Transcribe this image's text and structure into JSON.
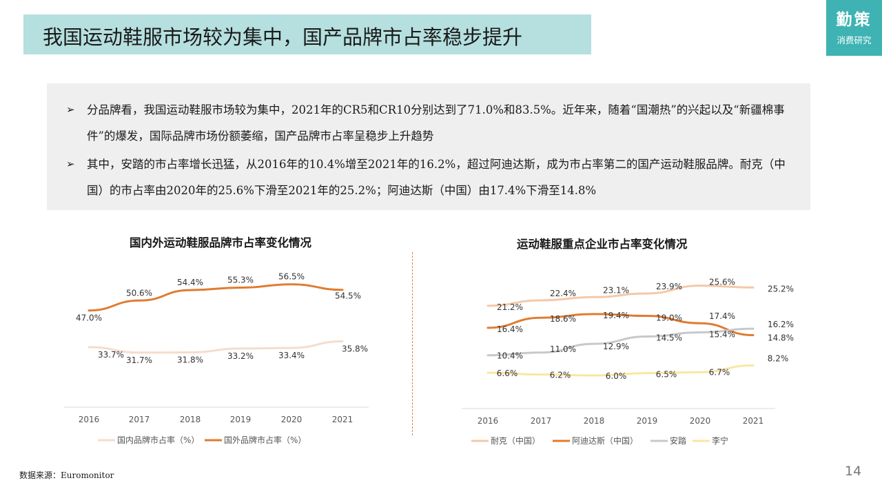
{
  "header": {
    "title": "我国运动鞋服市场较为集中，国产品牌市占率稳步提升"
  },
  "brand": {
    "name": "勤策",
    "subtitle": "消费研究"
  },
  "summary": {
    "bullets": [
      {
        "marker": "➢",
        "text": "分品牌看，我国运动鞋服市场较为集中，2021年的CR5和CR10分别达到了71.0%和83.5%。近年来，随着“国潮热”的兴起以及“新疆棉事件”的爆发，国际品牌市场份额萎缩，国产品牌市占率呈稳步上升趋势"
      },
      {
        "marker": "➢",
        "text": "其中，安踏的市占率增长迅猛，从2016年的10.4%增至2021年的16.2%，超过阿迪达斯，成为市占率第二的国产运动鞋服品牌。耐克（中国）的市占率由2020年的25.6%下滑至2021年的25.2%；阿迪达斯（中国）由17.4%下滑至14.8%"
      }
    ]
  },
  "chart_data": [
    {
      "type": "line",
      "title": "国内外运动鞋服品牌市占率变化情况",
      "xlabel": "",
      "ylabel": "",
      "categories": [
        "2016",
        "2017",
        "2018",
        "2019",
        "2020",
        "2021"
      ],
      "series": [
        {
          "name": "国内品牌市占率（%）",
          "values": [
            33.7,
            31.7,
            31.8,
            33.2,
            33.4,
            35.8
          ],
          "labels": [
            "33.7%",
            "31.7%",
            "31.8%",
            "33.2%",
            "33.4%",
            "35.8%"
          ],
          "color": "#f6dccb"
        },
        {
          "name": "国外品牌市占率（%）",
          "values": [
            47.0,
            50.6,
            54.4,
            55.3,
            56.5,
            54.5
          ],
          "labels": [
            "47.0%",
            "50.6%",
            "54.4%",
            "55.3%",
            "56.5%",
            "54.5%"
          ],
          "color": "#e07b30"
        }
      ],
      "ylim": [
        0,
        80
      ],
      "grid": false,
      "legend": "bottom"
    },
    {
      "type": "line",
      "title": "运动鞋服重点企业市占率变化情况",
      "xlabel": "",
      "ylabel": "",
      "categories": [
        "2016",
        "2017",
        "2018",
        "2019",
        "2020",
        "2021"
      ],
      "series": [
        {
          "name": "耐克（中国）",
          "values": [
            21.2,
            22.4,
            23.1,
            23.9,
            25.6,
            25.2
          ],
          "labels": [
            "21.2%",
            "22.4%",
            "23.1%",
            "23.9%",
            "25.6%",
            "25.2%"
          ],
          "color": "#f4c8a8"
        },
        {
          "name": "阿迪达斯（中国）",
          "values": [
            16.4,
            18.6,
            19.4,
            19.0,
            17.4,
            14.8
          ],
          "labels": [
            "16.4%",
            "18.6%",
            "19.4%",
            "19.0%",
            "17.4%",
            "14.8%"
          ],
          "color": "#e07b30"
        },
        {
          "name": "安踏",
          "values": [
            10.4,
            11.0,
            12.9,
            14.5,
            15.4,
            16.2
          ],
          "labels": [
            "10.4%",
            "11.0%",
            "12.9%",
            "14.5%",
            "15.4%",
            "16.2%"
          ],
          "color": "#c8c8c8"
        },
        {
          "name": "李宁",
          "values": [
            6.6,
            6.2,
            6.0,
            6.5,
            6.7,
            8.2
          ],
          "labels": [
            "6.6%",
            "6.2%",
            "6.0%",
            "6.5%",
            "6.7%",
            "8.2%"
          ],
          "color": "#fae6a0"
        }
      ],
      "grid": false,
      "legend": "bottom"
    }
  ],
  "footer": {
    "source": "数据来源：Euromonitor",
    "page_number": "14"
  }
}
